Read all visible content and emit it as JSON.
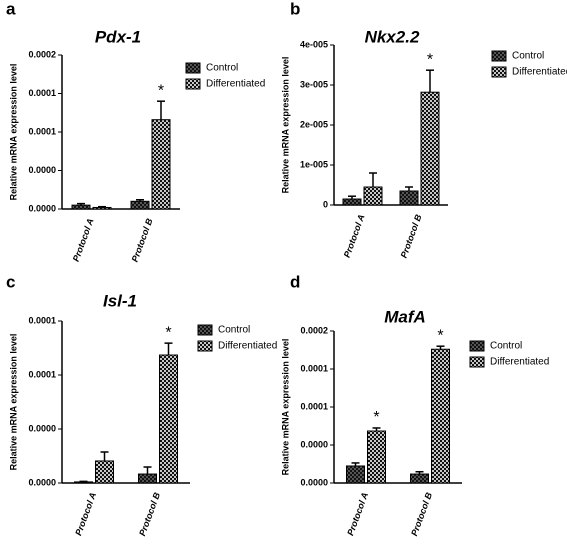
{
  "chart_data": [
    {
      "type": "bar",
      "panel_label": "a",
      "title": "Pdx-1",
      "ylabel": "Relative mRNA expression level",
      "categories": [
        "Protocol A",
        "Protocol B"
      ],
      "series": [
        {
          "name": "Control",
          "color": "#555555",
          "values": [
            5e-06,
            1e-05
          ],
          "errors": [
            2e-06,
            2e-06
          ],
          "annotations": [
            null,
            null
          ]
        },
        {
          "name": "Differentiated",
          "color": "#c8c8c8",
          "values": [
            2e-06,
            0.000116
          ],
          "errors": [
            1e-06,
            2.4e-05
          ],
          "annotations": [
            null,
            "*"
          ]
        }
      ],
      "ylim": [
        0,
        0.0002
      ],
      "yticks": [
        {
          "value": 0,
          "label": "0.0000"
        },
        {
          "value": 5e-05,
          "label": "0.0000"
        },
        {
          "value": 0.0001,
          "label": "0.0001"
        },
        {
          "value": 0.00015,
          "label": "0.0001"
        },
        {
          "value": 0.0002,
          "label": "0.0002"
        }
      ]
    },
    {
      "type": "bar",
      "panel_label": "b",
      "title": "Nkx2.2",
      "ylabel": "Relative mRNA expression level",
      "categories": [
        "Protocol A",
        "Protocol B"
      ],
      "series": [
        {
          "name": "Control",
          "color": "#555555",
          "values": [
            1.5e-06,
            3.5e-06
          ],
          "errors": [
            7e-07,
            1e-06
          ],
          "annotations": [
            null,
            null
          ]
        },
        {
          "name": "Differentiated",
          "color": "#c8c8c8",
          "values": [
            4.5e-06,
            2.82e-05
          ],
          "errors": [
            3.5e-06,
            5.5e-06
          ],
          "annotations": [
            null,
            "*"
          ]
        }
      ],
      "ylim": [
        0,
        4e-05
      ],
      "yticks": [
        0,
        {
          "value": 1e-05,
          "label": "1e-005"
        },
        {
          "value": 2e-05,
          "label": "2e-005"
        },
        {
          "value": 3e-05,
          "label": "3e-005"
        },
        {
          "value": 4e-05,
          "label": "4e-005"
        }
      ]
    },
    {
      "type": "bar",
      "panel_label": "c",
      "title": "Isl-1",
      "ylabel": "Relative mRNA expression level",
      "categories": [
        "Protocol A",
        "Protocol B"
      ],
      "series": [
        {
          "name": "Control",
          "color": "#555555",
          "values": [
            1e-06,
            8.3e-06
          ],
          "errors": [
            5e-07,
            6.5e-06
          ],
          "annotations": [
            null,
            null
          ]
        },
        {
          "name": "Differentiated",
          "color": "#c8c8c8",
          "values": [
            2.04e-05,
            0.0001185
          ],
          "errors": [
            8.3e-06,
            1.1e-05
          ],
          "annotations": [
            null,
            "*"
          ]
        }
      ],
      "ylim": [
        0,
        0.00015
      ],
      "yticks": [
        {
          "value": 0,
          "label": "0.0000"
        },
        {
          "value": 5e-05,
          "label": "0.0000"
        },
        {
          "value": 0.0001,
          "label": "0.0001"
        },
        {
          "value": 0.00015,
          "label": "0.0001"
        }
      ]
    },
    {
      "type": "bar",
      "panel_label": "d",
      "title": "MafA",
      "ylabel": "Relative mRNA expression level",
      "categories": [
        "Protocol A",
        "Protocol B"
      ],
      "series": [
        {
          "name": "Control",
          "color": "#555555",
          "values": [
            2.24e-05,
            1.18e-05
          ],
          "errors": [
            4e-06,
            3e-06
          ],
          "annotations": [
            null,
            null
          ]
        },
        {
          "name": "Differentiated",
          "color": "#c8c8c8",
          "values": [
            6.84e-05,
            0.000176
          ],
          "errors": [
            4e-06,
            4e-06
          ],
          "annotations": [
            "*",
            "*"
          ]
        }
      ],
      "ylim": [
        0,
        0.0002
      ],
      "yticks": [
        {
          "value": 0,
          "label": "0.0000"
        },
        {
          "value": 5e-05,
          "label": "0.0000"
        },
        {
          "value": 0.0001,
          "label": "0.0001"
        },
        {
          "value": 0.00015,
          "label": "0.0001"
        },
        {
          "value": 0.0002,
          "label": "0.0002"
        }
      ]
    }
  ]
}
